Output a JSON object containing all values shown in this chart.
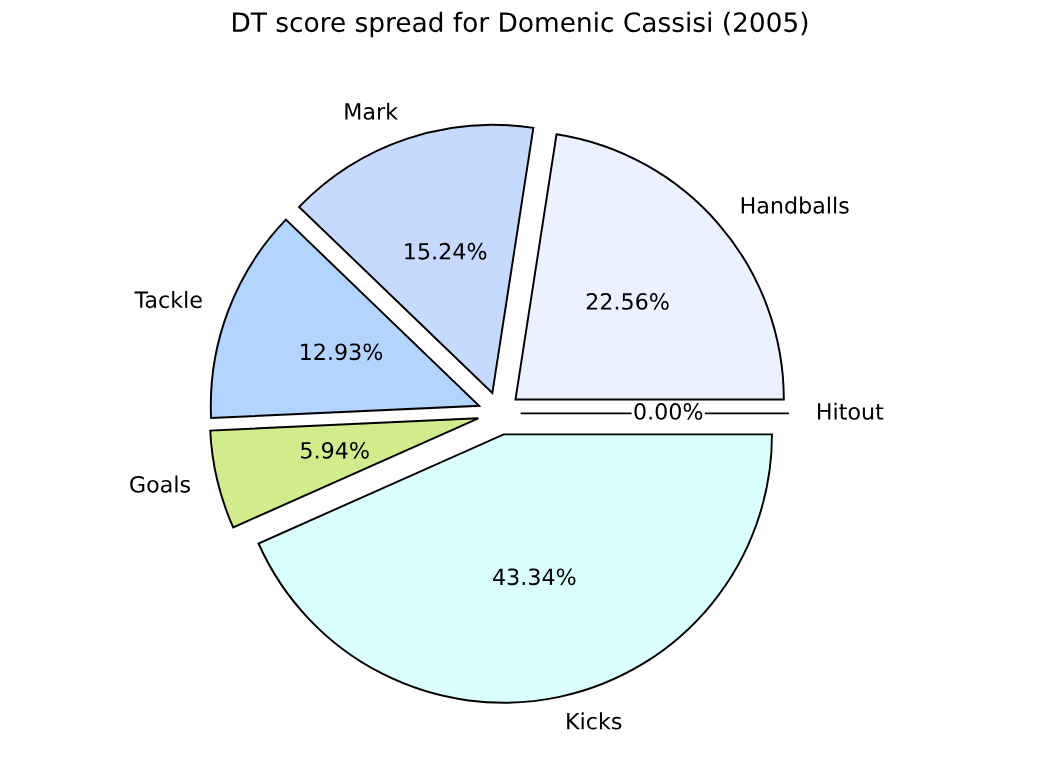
{
  "chart_data": {
    "type": "pie",
    "title": "DT score spread for Domenic Cassisi (2005)",
    "categories": [
      "Handballs",
      "Mark",
      "Tackle",
      "Goals",
      "Kicks",
      "Hitout"
    ],
    "values": [
      22.56,
      15.24,
      12.93,
      5.94,
      43.34,
      0.0
    ],
    "value_labels": [
      "22.56%",
      "15.24%",
      "12.93%",
      "5.94%",
      "43.34%",
      "0.00%"
    ],
    "colors": [
      "#ebf1ff",
      "#c6d9ff",
      "#b3d4ff",
      "#d0ec8c",
      "#d9ffff",
      "#ffffff"
    ]
  }
}
